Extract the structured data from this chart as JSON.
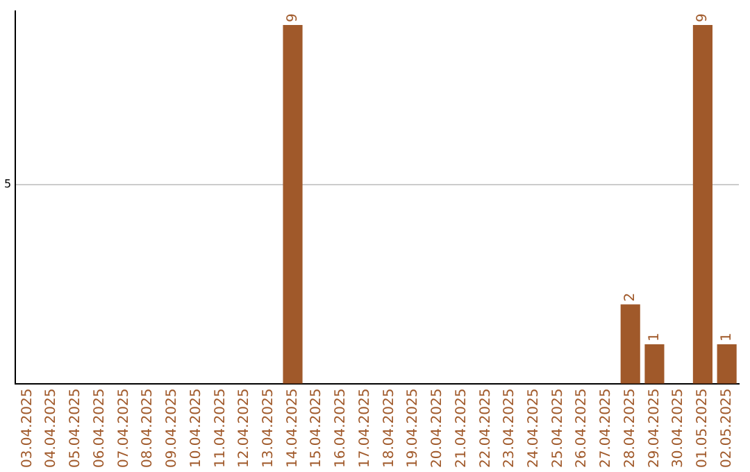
{
  "chart_data": {
    "type": "bar",
    "categories": [
      "03.04.2025",
      "04.04.2025",
      "05.04.2025",
      "06.04.2025",
      "07.04.2025",
      "08.04.2025",
      "09.04.2025",
      "10.04.2025",
      "11.04.2025",
      "12.04.2025",
      "13.04.2025",
      "14.04.2025",
      "15.04.2025",
      "16.04.2025",
      "17.04.2025",
      "18.04.2025",
      "19.04.2025",
      "20.04.2025",
      "21.04.2025",
      "22.04.2025",
      "23.04.2025",
      "24.04.2025",
      "25.04.2025",
      "26.04.2025",
      "27.04.2025",
      "28.04.2025",
      "29.04.2025",
      "30.04.2025",
      "01.05.2025",
      "02.05.2025"
    ],
    "values": [
      0,
      0,
      0,
      0,
      0,
      0,
      0,
      0,
      0,
      0,
      0,
      9,
      0,
      0,
      0,
      0,
      0,
      0,
      0,
      0,
      0,
      0,
      0,
      0,
      0,
      2,
      1,
      0,
      9,
      1
    ],
    "value_labels": [
      null,
      null,
      null,
      null,
      null,
      null,
      null,
      null,
      null,
      null,
      null,
      "9",
      null,
      null,
      null,
      null,
      null,
      null,
      null,
      null,
      null,
      null,
      null,
      null,
      null,
      "2",
      "1",
      null,
      "9",
      "1"
    ],
    "color": "#a0592a",
    "ylim": [
      0,
      9.35
    ],
    "yticks": [
      {
        "value": 0,
        "label": null
      },
      5
    ],
    "grid": "y",
    "legend": false
  }
}
